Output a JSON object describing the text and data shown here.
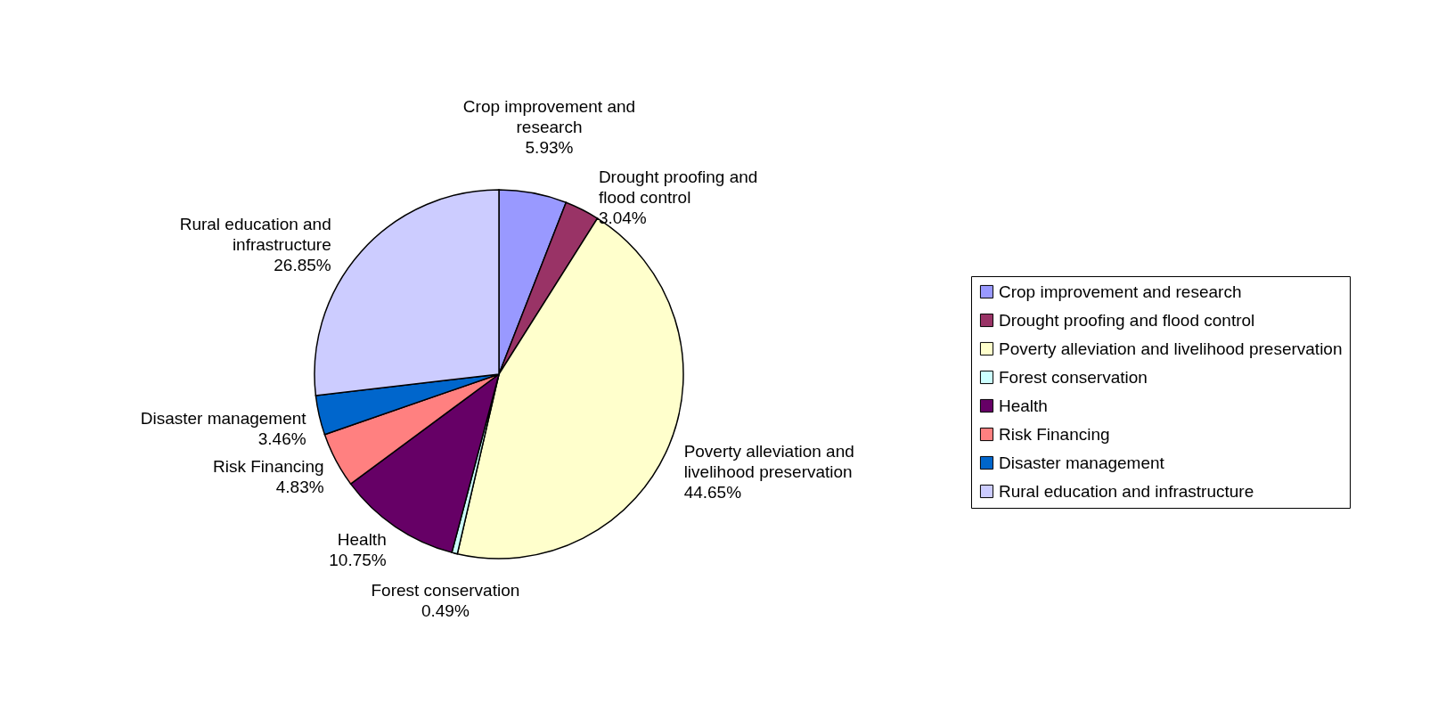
{
  "chart_data": {
    "type": "pie",
    "categories": [
      "Crop improvement and research",
      "Drought proofing and flood control",
      "Poverty alleviation and livelihood preservation",
      "Forest conservation",
      "Health",
      "Risk Financing",
      "Disaster management",
      "Rural education and infrastructure"
    ],
    "values": [
      5.93,
      3.04,
      44.65,
      0.49,
      10.75,
      4.83,
      3.46,
      26.85
    ],
    "value_labels": [
      "5.93%",
      "3.04%",
      "44.65%",
      "0.49%",
      "10.75%",
      "4.83%",
      "3.46%",
      "26.85%"
    ],
    "colors": [
      "#9999ff",
      "#993366",
      "#ffffcc",
      "#ccffff",
      "#660066",
      "#ff8080",
      "#0066cc",
      "#ccccff"
    ],
    "legend": "right"
  }
}
